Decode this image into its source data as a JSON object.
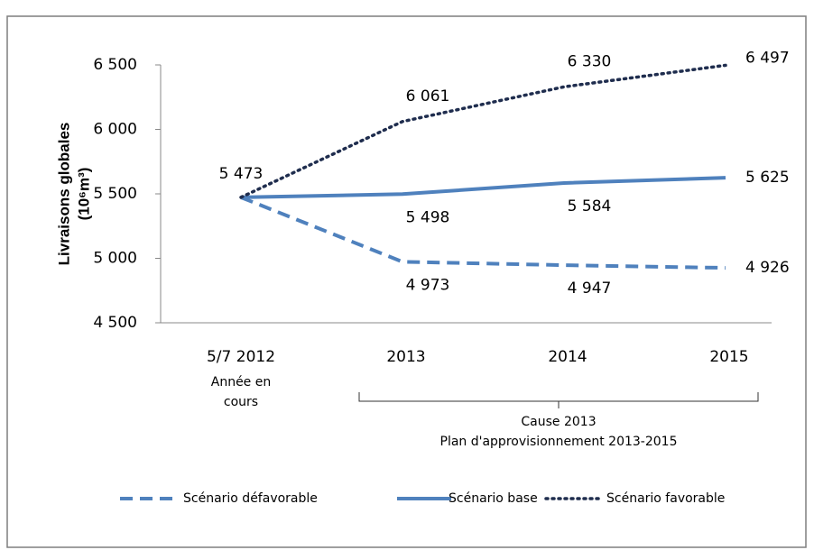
{
  "chart_data": {
    "type": "line",
    "y_label": [
      "Livraisons globales",
      "(10⁶m³)"
    ],
    "categories": [
      "5/7 2012",
      "2013",
      "2014",
      "2015"
    ],
    "category_notes": [
      [
        "Année en",
        "cours"
      ],
      null,
      null,
      null
    ],
    "annotation": [
      "Cause 2013",
      "Plan d'approvisionnement 2013-2015"
    ],
    "ylim": [
      4500,
      6500
    ],
    "yticks": [
      {
        "value": 4500,
        "label": "4 500"
      },
      {
        "value": 5000,
        "label": "5 000"
      },
      {
        "value": 5500,
        "label": "5 500"
      },
      {
        "value": 6000,
        "label": "6 000"
      },
      {
        "value": 6500,
        "label": "6 500"
      }
    ],
    "series": [
      {
        "name": "Scénario défavorable",
        "color": "#4f81bd",
        "dash": "dashed",
        "values": [
          5473,
          4973,
          4947,
          4926
        ],
        "value_labels": [
          null,
          "4 973",
          "4 947",
          "4 926"
        ]
      },
      {
        "name": "Scénario base",
        "color": "#4f81bd",
        "dash": "solid",
        "values": [
          5473,
          5498,
          5584,
          5625
        ],
        "value_labels": [
          null,
          "5 498",
          "5 584",
          "5 625"
        ]
      },
      {
        "name": "Scénario favorable",
        "color": "#1f2d4e",
        "dash": "dotted",
        "values": [
          5473,
          6061,
          6330,
          6497
        ],
        "value_labels": [
          "5 473",
          "6 061",
          "6 330",
          "6 497"
        ]
      }
    ],
    "legend": "bottom"
  }
}
